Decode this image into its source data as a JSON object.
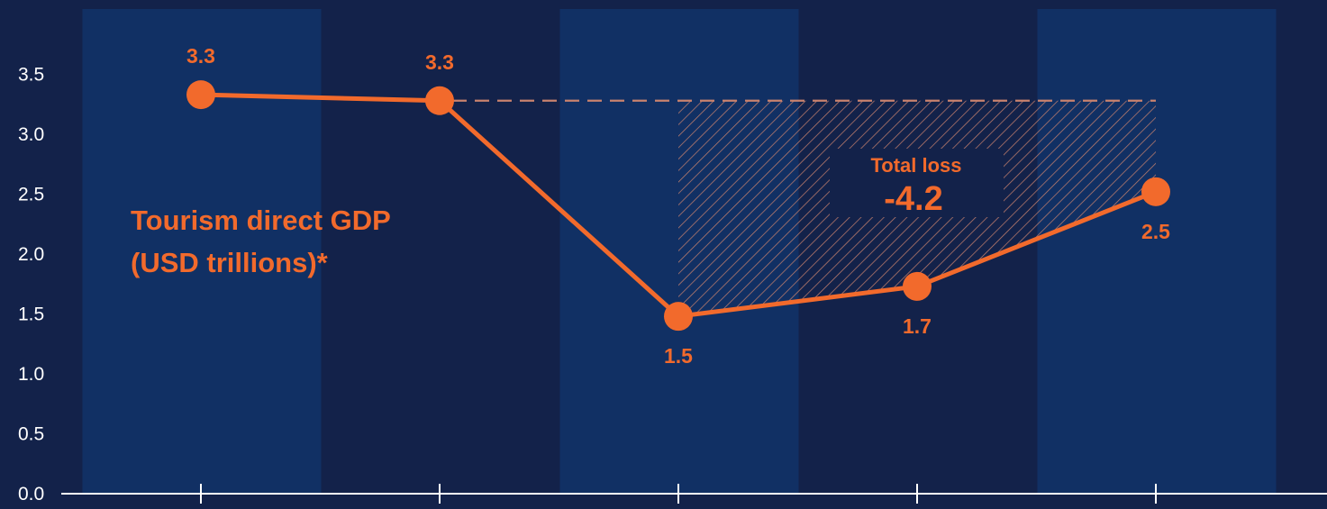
{
  "colors": {
    "background": "#13224a",
    "band": "#113064",
    "axis": "#ffffff",
    "accent": "#f26a2c"
  },
  "chart_data": {
    "type": "line",
    "ylim": [
      0,
      3.8
    ],
    "y_ticks": [
      "0.0",
      "0.5",
      "1.0",
      "1.5",
      "2.0",
      "2.5",
      "3.0",
      "3.5"
    ],
    "x_categories": [
      "",
      "",
      "",
      "",
      ""
    ],
    "series": [
      {
        "name": "Tourism direct GDP (USD trillions)*",
        "name_lines": [
          "Tourism direct GDP",
          "(USD trillions)*"
        ],
        "values": [
          3.33,
          3.28,
          1.48,
          1.73,
          2.52
        ],
        "labels": [
          "3.3",
          "3.3",
          "1.5",
          "1.7",
          "2.5"
        ]
      }
    ],
    "reference_line": {
      "value": 3.28
    },
    "annotation": {
      "title": "Total loss",
      "value": "-4.2"
    },
    "grid": false
  }
}
